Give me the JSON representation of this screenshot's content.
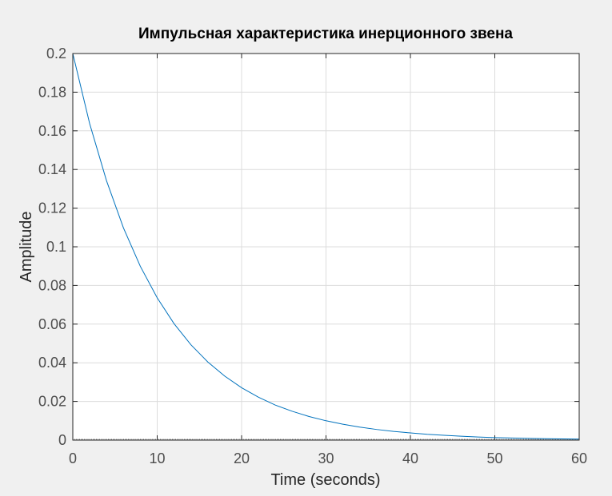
{
  "colors": {
    "figure_background": "#f0f0f0",
    "axes_background": "#ffffff",
    "grid": "#dcdcdc",
    "axis": "#262626",
    "tick_text": "#4d4d4d",
    "series": "#0072bd"
  },
  "chart_data": {
    "type": "line",
    "title": "Импульсная характеристика инерционного звена",
    "xlabel": "Time (seconds)",
    "ylabel": "Amplitude",
    "xlim": [
      0,
      60
    ],
    "ylim": [
      0,
      0.2
    ],
    "xticks": [
      0,
      10,
      20,
      30,
      40,
      50,
      60
    ],
    "yticks": [
      0,
      0.02,
      0.04,
      0.06,
      0.08,
      0.1,
      0.12,
      0.14,
      0.16,
      0.18,
      0.2
    ],
    "xtick_labels": [
      "0",
      "10",
      "20",
      "30",
      "40",
      "50",
      "60"
    ],
    "ytick_labels": [
      "0",
      "0.02",
      "0.04",
      "0.06",
      "0.08",
      "0.1",
      "0.12",
      "0.14",
      "0.16",
      "0.18",
      "0.2"
    ],
    "grid": true,
    "box": true,
    "series": [
      {
        "x": [
          0,
          2,
          4,
          6,
          8,
          10,
          12,
          14,
          16,
          18,
          20,
          22,
          24,
          26,
          28,
          30,
          32,
          34,
          36,
          38,
          40,
          42,
          44,
          46,
          48,
          50,
          52,
          54,
          56,
          58,
          60
        ],
        "values": [
          0.2,
          0.1637,
          0.1341,
          0.1098,
          0.0899,
          0.0736,
          0.0602,
          0.0493,
          0.0404,
          0.0331,
          0.0271,
          0.0222,
          0.0181,
          0.0149,
          0.0122,
          0.01,
          0.0082,
          0.0067,
          0.0055,
          0.0045,
          0.0037,
          0.003,
          0.0025,
          0.002,
          0.0016,
          0.0013,
          0.0011,
          0.0009,
          0.0007,
          0.0006,
          0.0005
        ]
      }
    ]
  }
}
